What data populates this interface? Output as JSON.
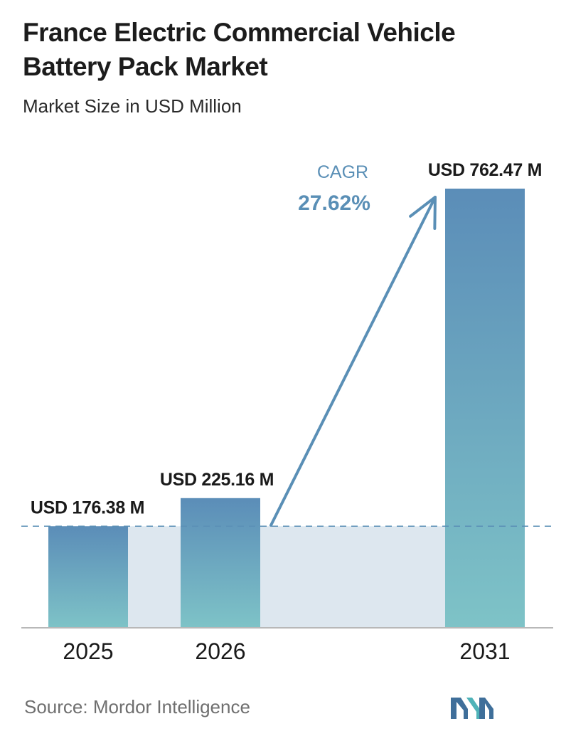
{
  "title": "France Electric Commercial Vehicle Battery Pack Market",
  "subtitle": "Market Size in USD Million",
  "source": "Source:  Mordor Intelligence",
  "cagr": {
    "label": "CAGR",
    "value": "27.62%"
  },
  "colors": {
    "bar_top": "#5b8db8",
    "bar_bottom": "#7ec3c7",
    "band": "#dde7ef",
    "accent": "#5a8fb6",
    "axis": "#b8b8b8",
    "logo_dark": "#3f6f9a",
    "logo_light": "#4fb3b8"
  },
  "chart_data": {
    "type": "bar",
    "categories": [
      "2025",
      "2026",
      "2031"
    ],
    "values": [
      176.38,
      225.16,
      762.47
    ],
    "data_labels": [
      "USD 176.38 M",
      "USD 225.16 M",
      "USD 762.47 M"
    ],
    "unit": "USD Million",
    "reference_line": 176.38,
    "grid": false,
    "legend": "none"
  }
}
